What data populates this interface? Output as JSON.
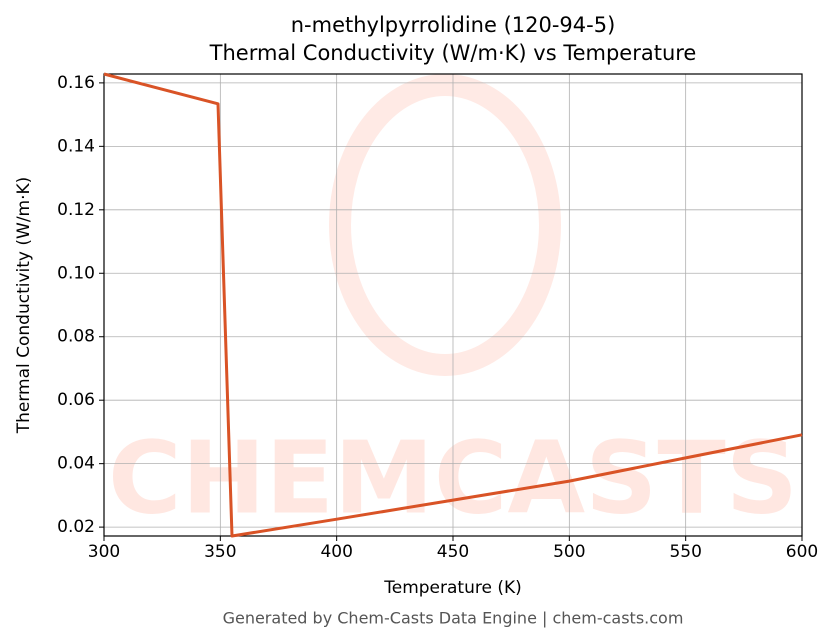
{
  "chart_data": {
    "type": "line",
    "title": "n-methylpyrrolidine (120-94-5)",
    "subtitle": "Thermal Conductivity (W/m·K) vs Temperature",
    "x_label": "Temperature (K)",
    "y_label": "Thermal Conductivity (W/m·K)",
    "watermark": "CHEMCASTS",
    "footer": "Generated by Chem-Casts Data Engine | chem-casts.com",
    "x": [
      300,
      349,
      355,
      400,
      450,
      500,
      550,
      600
    ],
    "series": [
      {
        "name": "Thermal Conductivity",
        "color": "#d95326",
        "values": [
          0.1628,
          0.1534,
          0.0172,
          0.0225,
          0.0285,
          0.0345,
          0.0418,
          0.0491
        ]
      }
    ],
    "xlim": [
      300,
      600
    ],
    "xticks": [
      300,
      350,
      400,
      450,
      500,
      550,
      600
    ],
    "ylim": [
      0.0172,
      0.1628
    ],
    "yticks": [
      0.02,
      0.04,
      0.06,
      0.08,
      {
        "value": 0.1,
        "label": "0.10"
      },
      0.12,
      0.14,
      0.16
    ],
    "grid": true
  }
}
